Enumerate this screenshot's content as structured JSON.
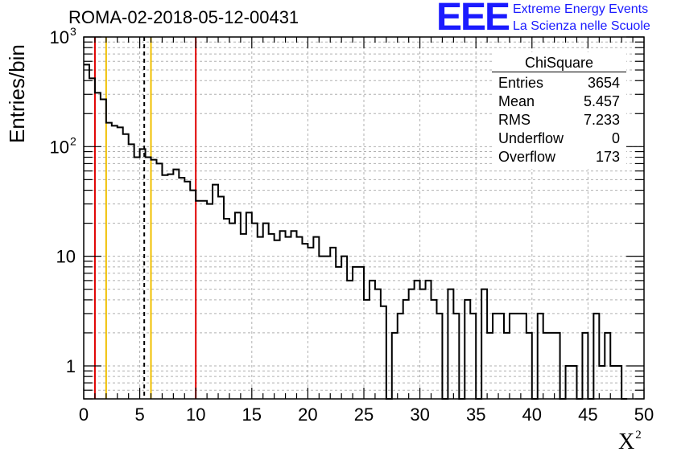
{
  "chart_data": {
    "type": "histogram",
    "title": "ROMA-02-2018-05-12-00431",
    "xlabel": "X",
    "xlabel_sup": "2",
    "ylabel": "Entries/bin",
    "xlim": [
      0,
      50
    ],
    "ylim": [
      0.5,
      1000
    ],
    "yscale": "log",
    "grid": true,
    "bin_width": 0.5,
    "bin_start": 0,
    "x_ticks": [
      "0",
      "5",
      "10",
      "15",
      "20",
      "25",
      "30",
      "35",
      "40",
      "45",
      "50"
    ],
    "y_ticks": [
      {
        "value": 1,
        "label": "1"
      },
      {
        "value": 10,
        "label": "10"
      },
      {
        "value": 100,
        "label": "10",
        "sup": "2"
      },
      {
        "value": 1000,
        "label": "10",
        "sup": "3"
      }
    ],
    "values": [
      560,
      420,
      310,
      270,
      165,
      155,
      150,
      130,
      105,
      80,
      95,
      80,
      76,
      70,
      55,
      56,
      62,
      52,
      48,
      40,
      32,
      32,
      30,
      45,
      35,
      22,
      20,
      25,
      16,
      25,
      20,
      15,
      20,
      16,
      14,
      17,
      15,
      17,
      15,
      13,
      12,
      15,
      10,
      10,
      12,
      8,
      10,
      6,
      8,
      8,
      4,
      6,
      5,
      3.5,
      0,
      2,
      3,
      4,
      5,
      6,
      5,
      6,
      4,
      3,
      0,
      5,
      3,
      0,
      4,
      3,
      0,
      5,
      2,
      3,
      3,
      2,
      3,
      3,
      3,
      2,
      0,
      3,
      2,
      2,
      2,
      0,
      1,
      1,
      0,
      2,
      0,
      3,
      1,
      2,
      1,
      1,
      0
    ],
    "vertical_lines": [
      {
        "x": 1.0,
        "color": "#e00000",
        "style": "solid"
      },
      {
        "x": 2.0,
        "color": "#f0c000",
        "style": "solid"
      },
      {
        "x": 5.4,
        "color": "#000000",
        "style": "dashed"
      },
      {
        "x": 6.0,
        "color": "#f0c000",
        "style": "solid"
      },
      {
        "x": 10.0,
        "color": "#e00000",
        "style": "solid"
      }
    ],
    "colors": {
      "histogram": "#000000",
      "grid": "#b0b0b0"
    }
  },
  "stats_box": {
    "title": "ChiSquare",
    "rows": [
      {
        "key": "Entries",
        "value": "3654"
      },
      {
        "key": "Mean",
        "value": "5.457"
      },
      {
        "key": "RMS",
        "value": "7.233"
      },
      {
        "key": "Underflow",
        "value": "0"
      },
      {
        "key": "Overflow",
        "value": "173"
      }
    ]
  },
  "logo": {
    "text": "EEE",
    "line1": "Extreme Energy Events",
    "line2": "La Scienza nelle Scuole",
    "color": "#1a1aff"
  }
}
